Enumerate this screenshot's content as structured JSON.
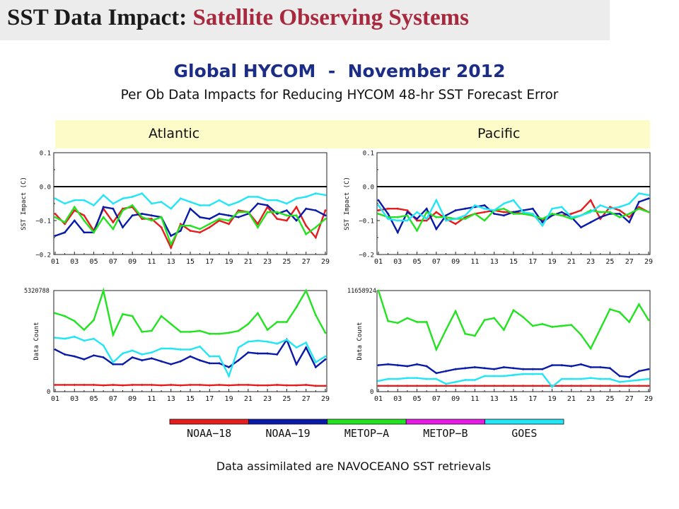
{
  "header": {
    "title_part1": "SST Data Impact:",
    "title_part2": "Satellite Observing Systems",
    "subtitle": "Global HYCOM  -  November 2012",
    "subtitle2": "Per Ob Data Impacts for Reducing HYCOM 48-hr SST Forecast Error"
  },
  "regions": {
    "atlantic": "Atlantic",
    "pacific": "Pacific"
  },
  "footer": "Data assimilated are NAVOCEANO SST retrievals",
  "legend": [
    {
      "name": "NOAA−18",
      "color": "#e51c1c"
    },
    {
      "name": "NOAA−19",
      "color": "#0a1aa8"
    },
    {
      "name": "METOP−A",
      "color": "#22e31f"
    },
    {
      "name": "METOP−B",
      "color": "#e51be5"
    },
    {
      "name": "GOES",
      "color": "#22e6f5"
    }
  ],
  "colors": {
    "title_red": "#a8293d",
    "subtitle_blue": "#1c2d86",
    "band": "#fdfbc8"
  },
  "chart_data": [
    {
      "type": "line",
      "region": "Atlantic",
      "ylabel": "SST Impact (C)",
      "x_ticks": [
        "01",
        "03",
        "05",
        "07",
        "09",
        "11",
        "13",
        "15",
        "17",
        "19",
        "21",
        "23",
        "25",
        "27",
        "29"
      ],
      "y_ticks": [
        "0.1",
        "0.0",
        "−0.1",
        "−0.2"
      ],
      "ylim": [
        -0.2,
        0.1
      ],
      "zero_line": true,
      "series": [
        {
          "name": "NOAA−18",
          "color": "#e51c1c",
          "values": [
            -0.08,
            -0.11,
            -0.07,
            -0.085,
            -0.13,
            -0.065,
            -0.105,
            -0.065,
            -0.06,
            -0.095,
            -0.095,
            -0.12,
            -0.18,
            -0.11,
            -0.13,
            -0.135,
            -0.12,
            -0.1,
            -0.11,
            -0.07,
            -0.075,
            -0.11,
            -0.06,
            -0.095,
            -0.1,
            -0.06,
            -0.115,
            -0.15,
            -0.07
          ]
        },
        {
          "name": "NOAA−19",
          "color": "#0a1aa8",
          "values": [
            -0.145,
            -0.135,
            -0.1,
            -0.135,
            -0.135,
            -0.06,
            -0.065,
            -0.12,
            -0.085,
            -0.08,
            -0.085,
            -0.09,
            -0.145,
            -0.13,
            -0.065,
            -0.09,
            -0.095,
            -0.08,
            -0.085,
            -0.09,
            -0.08,
            -0.05,
            -0.055,
            -0.08,
            -0.07,
            -0.1,
            -0.065,
            -0.07,
            -0.085
          ]
        },
        {
          "name": "METOP−A",
          "color": "#22e31f",
          "values": [
            -0.09,
            -0.105,
            -0.06,
            -0.1,
            -0.135,
            -0.09,
            -0.125,
            -0.07,
            -0.055,
            -0.09,
            -0.1,
            -0.09,
            -0.17,
            -0.115,
            -0.115,
            -0.125,
            -0.11,
            -0.095,
            -0.1,
            -0.075,
            -0.075,
            -0.12,
            -0.075,
            -0.075,
            -0.085,
            -0.085,
            -0.14,
            -0.12,
            -0.095
          ]
        },
        {
          "name": "GOES",
          "color": "#22e6f5",
          "values": [
            -0.035,
            -0.05,
            -0.04,
            -0.04,
            -0.055,
            -0.025,
            -0.05,
            -0.035,
            -0.03,
            -0.02,
            -0.05,
            -0.045,
            -0.065,
            -0.035,
            -0.045,
            -0.055,
            -0.055,
            -0.04,
            -0.055,
            -0.045,
            -0.03,
            -0.03,
            -0.04,
            -0.04,
            -0.05,
            -0.035,
            -0.03,
            -0.02,
            -0.025
          ]
        }
      ]
    },
    {
      "type": "line",
      "region": "Pacific",
      "ylabel": "SST Impact (C)",
      "x_ticks": [
        "01",
        "03",
        "05",
        "07",
        "09",
        "11",
        "13",
        "15",
        "17",
        "19",
        "21",
        "23",
        "25",
        "27",
        "29"
      ],
      "y_ticks": [
        "0.1",
        "0.0",
        "−0.1",
        "−0.2"
      ],
      "ylim": [
        -0.2,
        0.1
      ],
      "zero_line": true,
      "series": [
        {
          "name": "NOAA−18",
          "color": "#e51c1c",
          "values": [
            -0.07,
            -0.065,
            -0.065,
            -0.07,
            -0.1,
            -0.1,
            -0.075,
            -0.095,
            -0.11,
            -0.09,
            -0.08,
            -0.075,
            -0.07,
            -0.075,
            -0.075,
            -0.08,
            -0.085,
            -0.1,
            -0.08,
            -0.085,
            -0.08,
            -0.07,
            -0.04,
            -0.095,
            -0.06,
            -0.07,
            -0.09,
            -0.06,
            -0.075
          ]
        },
        {
          "name": "NOAA−19",
          "color": "#0a1aa8",
          "values": [
            -0.04,
            -0.08,
            -0.135,
            -0.075,
            -0.095,
            -0.065,
            -0.125,
            -0.085,
            -0.07,
            -0.065,
            -0.06,
            -0.055,
            -0.08,
            -0.085,
            -0.075,
            -0.07,
            -0.065,
            -0.105,
            -0.085,
            -0.075,
            -0.09,
            -0.12,
            -0.105,
            -0.09,
            -0.08,
            -0.08,
            -0.105,
            -0.045,
            -0.035
          ]
        },
        {
          "name": "METOP−A",
          "color": "#22e31f",
          "values": [
            -0.08,
            -0.09,
            -0.09,
            -0.085,
            -0.13,
            -0.075,
            -0.09,
            -0.09,
            -0.095,
            -0.095,
            -0.08,
            -0.1,
            -0.07,
            -0.065,
            -0.08,
            -0.08,
            -0.085,
            -0.095,
            -0.08,
            -0.085,
            -0.095,
            -0.085,
            -0.07,
            -0.075,
            -0.075,
            -0.09,
            -0.08,
            -0.065,
            -0.075
          ]
        },
        {
          "name": "GOES",
          "color": "#22e6f5",
          "values": [
            -0.055,
            -0.095,
            -0.1,
            -0.1,
            -0.075,
            -0.095,
            -0.04,
            -0.1,
            -0.095,
            -0.085,
            -0.055,
            -0.065,
            -0.07,
            -0.05,
            -0.04,
            -0.075,
            -0.08,
            -0.115,
            -0.065,
            -0.06,
            -0.09,
            -0.085,
            -0.075,
            -0.055,
            -0.065,
            -0.06,
            -0.05,
            -0.02,
            -0.025
          ]
        }
      ]
    },
    {
      "type": "line",
      "region": "Atlantic",
      "ylabel": "Data Count",
      "x_ticks": [
        "01",
        "03",
        "05",
        "07",
        "09",
        "11",
        "13",
        "15",
        "17",
        "19",
        "21",
        "23",
        "25",
        "27",
        "29"
      ],
      "y_max_label": "5320788",
      "y_min_label": "0",
      "ylim": [
        0,
        5320788
      ],
      "series": [
        {
          "name": "NOAA−18",
          "color": "#e51c1c",
          "values": [
            0.04,
            0.04,
            0.04,
            0.04,
            0.04,
            0.035,
            0.04,
            0.035,
            0.04,
            0.04,
            0.04,
            0.035,
            0.04,
            0.035,
            0.04,
            0.04,
            0.035,
            0.04,
            0.035,
            0.04,
            0.04,
            0.035,
            0.035,
            0.04,
            0.035,
            0.035,
            0.04,
            0.03,
            0.03
          ]
        },
        {
          "name": "NOAA−19",
          "color": "#0a1aa8",
          "values": [
            0.4,
            0.35,
            0.33,
            0.3,
            0.34,
            0.32,
            0.25,
            0.25,
            0.32,
            0.29,
            0.31,
            0.28,
            0.25,
            0.28,
            0.33,
            0.29,
            0.26,
            0.26,
            0.22,
            0.29,
            0.37,
            0.36,
            0.36,
            0.35,
            0.5,
            0.25,
            0.42,
            0.22,
            0.3
          ]
        },
        {
          "name": "METOP−A",
          "color": "#22e31f",
          "values": [
            0.77,
            0.74,
            0.69,
            0.6,
            0.7,
            1.0,
            0.55,
            0.76,
            0.74,
            0.58,
            0.59,
            0.74,
            0.66,
            0.58,
            0.58,
            0.59,
            0.56,
            0.56,
            0.57,
            0.59,
            0.66,
            0.77,
            0.6,
            0.68,
            0.68,
            0.83,
            1.0,
            0.75,
            0.57
          ]
        },
        {
          "name": "GOES",
          "color": "#22e6f5",
          "values": [
            0.52,
            0.51,
            0.53,
            0.49,
            0.51,
            0.44,
            0.27,
            0.36,
            0.39,
            0.35,
            0.37,
            0.41,
            0.41,
            0.4,
            0.4,
            0.43,
            0.33,
            0.33,
            0.13,
            0.42,
            0.48,
            0.49,
            0.48,
            0.46,
            0.5,
            0.42,
            0.47,
            0.27,
            0.33
          ]
        }
      ]
    },
    {
      "type": "line",
      "region": "Pacific",
      "ylabel": "Data Count",
      "x_ticks": [
        "01",
        "03",
        "05",
        "07",
        "09",
        "11",
        "13",
        "15",
        "17",
        "19",
        "21",
        "23",
        "25",
        "27",
        "29"
      ],
      "y_max_label": "11658924",
      "y_min_label": "0",
      "ylim": [
        0,
        11658924
      ],
      "series": [
        {
          "name": "NOAA−18",
          "color": "#e51c1c",
          "values": [
            0.03,
            0.03,
            0.03,
            0.03,
            0.03,
            0.03,
            0.03,
            0.03,
            0.03,
            0.03,
            0.03,
            0.03,
            0.03,
            0.03,
            0.03,
            0.03,
            0.03,
            0.03,
            0.03,
            0.03,
            0.03,
            0.03,
            0.03,
            0.03,
            0.03,
            0.03,
            0.03,
            0.03,
            0.03
          ]
        },
        {
          "name": "NOAA−19",
          "color": "#0a1aa8",
          "values": [
            0.24,
            0.25,
            0.24,
            0.23,
            0.25,
            0.23,
            0.16,
            0.18,
            0.2,
            0.21,
            0.22,
            0.21,
            0.2,
            0.22,
            0.21,
            0.2,
            0.2,
            0.2,
            0.24,
            0.24,
            0.23,
            0.25,
            0.22,
            0.22,
            0.21,
            0.13,
            0.12,
            0.18,
            0.2
          ]
        },
        {
          "name": "METOP−A",
          "color": "#22e31f",
          "values": [
            1.0,
            0.69,
            0.67,
            0.72,
            0.68,
            0.68,
            0.4,
            0.6,
            0.79,
            0.56,
            0.54,
            0.7,
            0.72,
            0.6,
            0.8,
            0.73,
            0.64,
            0.66,
            0.63,
            0.64,
            0.65,
            0.55,
            0.41,
            0.61,
            0.81,
            0.78,
            0.68,
            0.86,
            0.7
          ]
        },
        {
          "name": "GOES",
          "color": "#22e6f5",
          "values": [
            0.08,
            0.1,
            0.1,
            0.11,
            0.11,
            0.1,
            0.1,
            0.05,
            0.07,
            0.09,
            0.09,
            0.13,
            0.13,
            0.13,
            0.14,
            0.15,
            0.15,
            0.15,
            0.02,
            0.1,
            0.1,
            0.1,
            0.11,
            0.1,
            0.1,
            0.07,
            0.08,
            0.09,
            0.1
          ]
        }
      ]
    }
  ]
}
